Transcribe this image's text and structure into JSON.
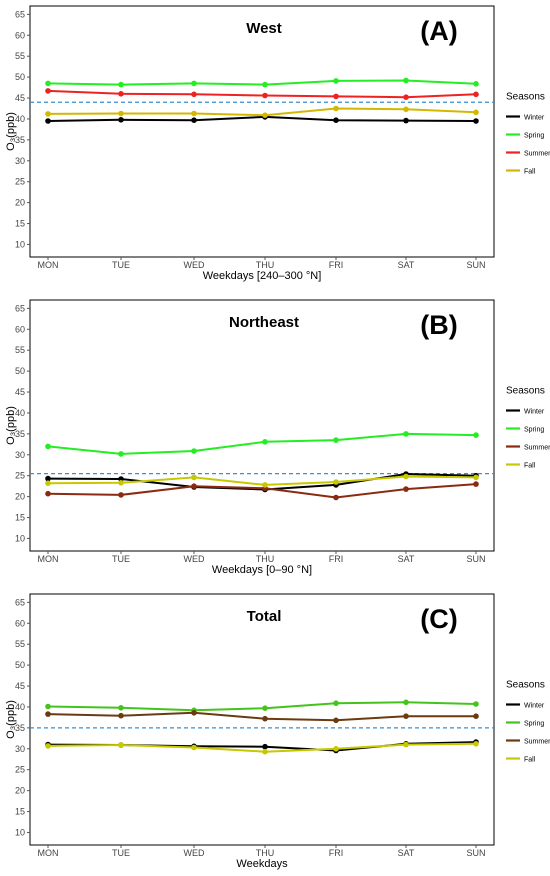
{
  "ylabel": "O₃(ppb)",
  "legend_title": "Seasons",
  "chart_data": [
    {
      "type": "line",
      "panel_title": "West",
      "panel_letter": "(A)",
      "xlabel": "Weekdays [240–300 °N]",
      "categories": [
        "MON",
        "TUE",
        "WED",
        "THU",
        "FRI",
        "SAT",
        "SUN"
      ],
      "ylim": [
        7,
        67
      ],
      "yticks": [
        10,
        15,
        20,
        25,
        30,
        35,
        40,
        45,
        50,
        55,
        60,
        65
      ],
      "reference_line": 44,
      "series": [
        {
          "name": "Winter",
          "color": "#000000",
          "values": [
            39.5,
            39.8,
            39.7,
            40.5,
            39.7,
            39.6,
            39.5
          ]
        },
        {
          "name": "Spring",
          "color": "#22ee22",
          "values": [
            48.5,
            48.2,
            48.5,
            48.2,
            49.1,
            49.2,
            48.4
          ]
        },
        {
          "name": "Summer",
          "color": "#ee2222",
          "values": [
            46.7,
            46.0,
            45.9,
            45.6,
            45.4,
            45.2,
            45.9
          ]
        },
        {
          "name": "Fall",
          "color": "#d4b800",
          "values": [
            41.2,
            41.3,
            41.3,
            40.9,
            42.5,
            42.3,
            41.6
          ]
        }
      ]
    },
    {
      "type": "line",
      "panel_title": "Northeast",
      "panel_letter": "(B)",
      "xlabel": "Weekdays [0–90 °N]",
      "categories": [
        "MON",
        "TUE",
        "WED",
        "THU",
        "FRI",
        "SAT",
        "SUN"
      ],
      "ylim": [
        7,
        67
      ],
      "yticks": [
        10,
        15,
        20,
        25,
        30,
        35,
        40,
        45,
        50,
        55,
        60,
        65
      ],
      "reference_line": 25.5,
      "series": [
        {
          "name": "Winter",
          "color": "#000000",
          "values": [
            24.3,
            24.2,
            22.3,
            21.7,
            22.8,
            25.4,
            25.0
          ]
        },
        {
          "name": "Spring",
          "color": "#22ee22",
          "values": [
            32.0,
            30.2,
            30.9,
            33.1,
            33.5,
            35.0,
            34.7
          ]
        },
        {
          "name": "Summer",
          "color": "#8b2a12",
          "values": [
            20.7,
            20.4,
            22.5,
            22.0,
            19.8,
            21.8,
            23.0
          ]
        },
        {
          "name": "Fall",
          "color": "#c8c800",
          "values": [
            23.2,
            23.3,
            24.6,
            22.8,
            23.5,
            24.8,
            24.6
          ]
        }
      ]
    },
    {
      "type": "line",
      "panel_title": "Total",
      "panel_letter": "(C)",
      "xlabel": "Weekdays",
      "categories": [
        "MON",
        "TUE",
        "WED",
        "THU",
        "FRI",
        "SAT",
        "SUN"
      ],
      "ylim": [
        7,
        67
      ],
      "yticks": [
        10,
        15,
        20,
        25,
        30,
        35,
        40,
        45,
        50,
        55,
        60,
        65
      ],
      "reference_line": 35,
      "series": [
        {
          "name": "Winter",
          "color": "#000000",
          "values": [
            31.0,
            30.9,
            30.6,
            30.5,
            29.6,
            31.2,
            31.6
          ]
        },
        {
          "name": "Spring",
          "color": "#44c41a",
          "values": [
            40.1,
            39.8,
            39.2,
            39.7,
            40.9,
            41.1,
            40.7
          ]
        },
        {
          "name": "Summer",
          "color": "#6b3a10",
          "values": [
            38.3,
            37.9,
            38.6,
            37.2,
            36.8,
            37.8,
            37.8
          ]
        },
        {
          "name": "Fall",
          "color": "#c8c800",
          "values": [
            30.7,
            30.9,
            30.3,
            29.3,
            30.0,
            31.0,
            31.2
          ]
        }
      ]
    }
  ]
}
